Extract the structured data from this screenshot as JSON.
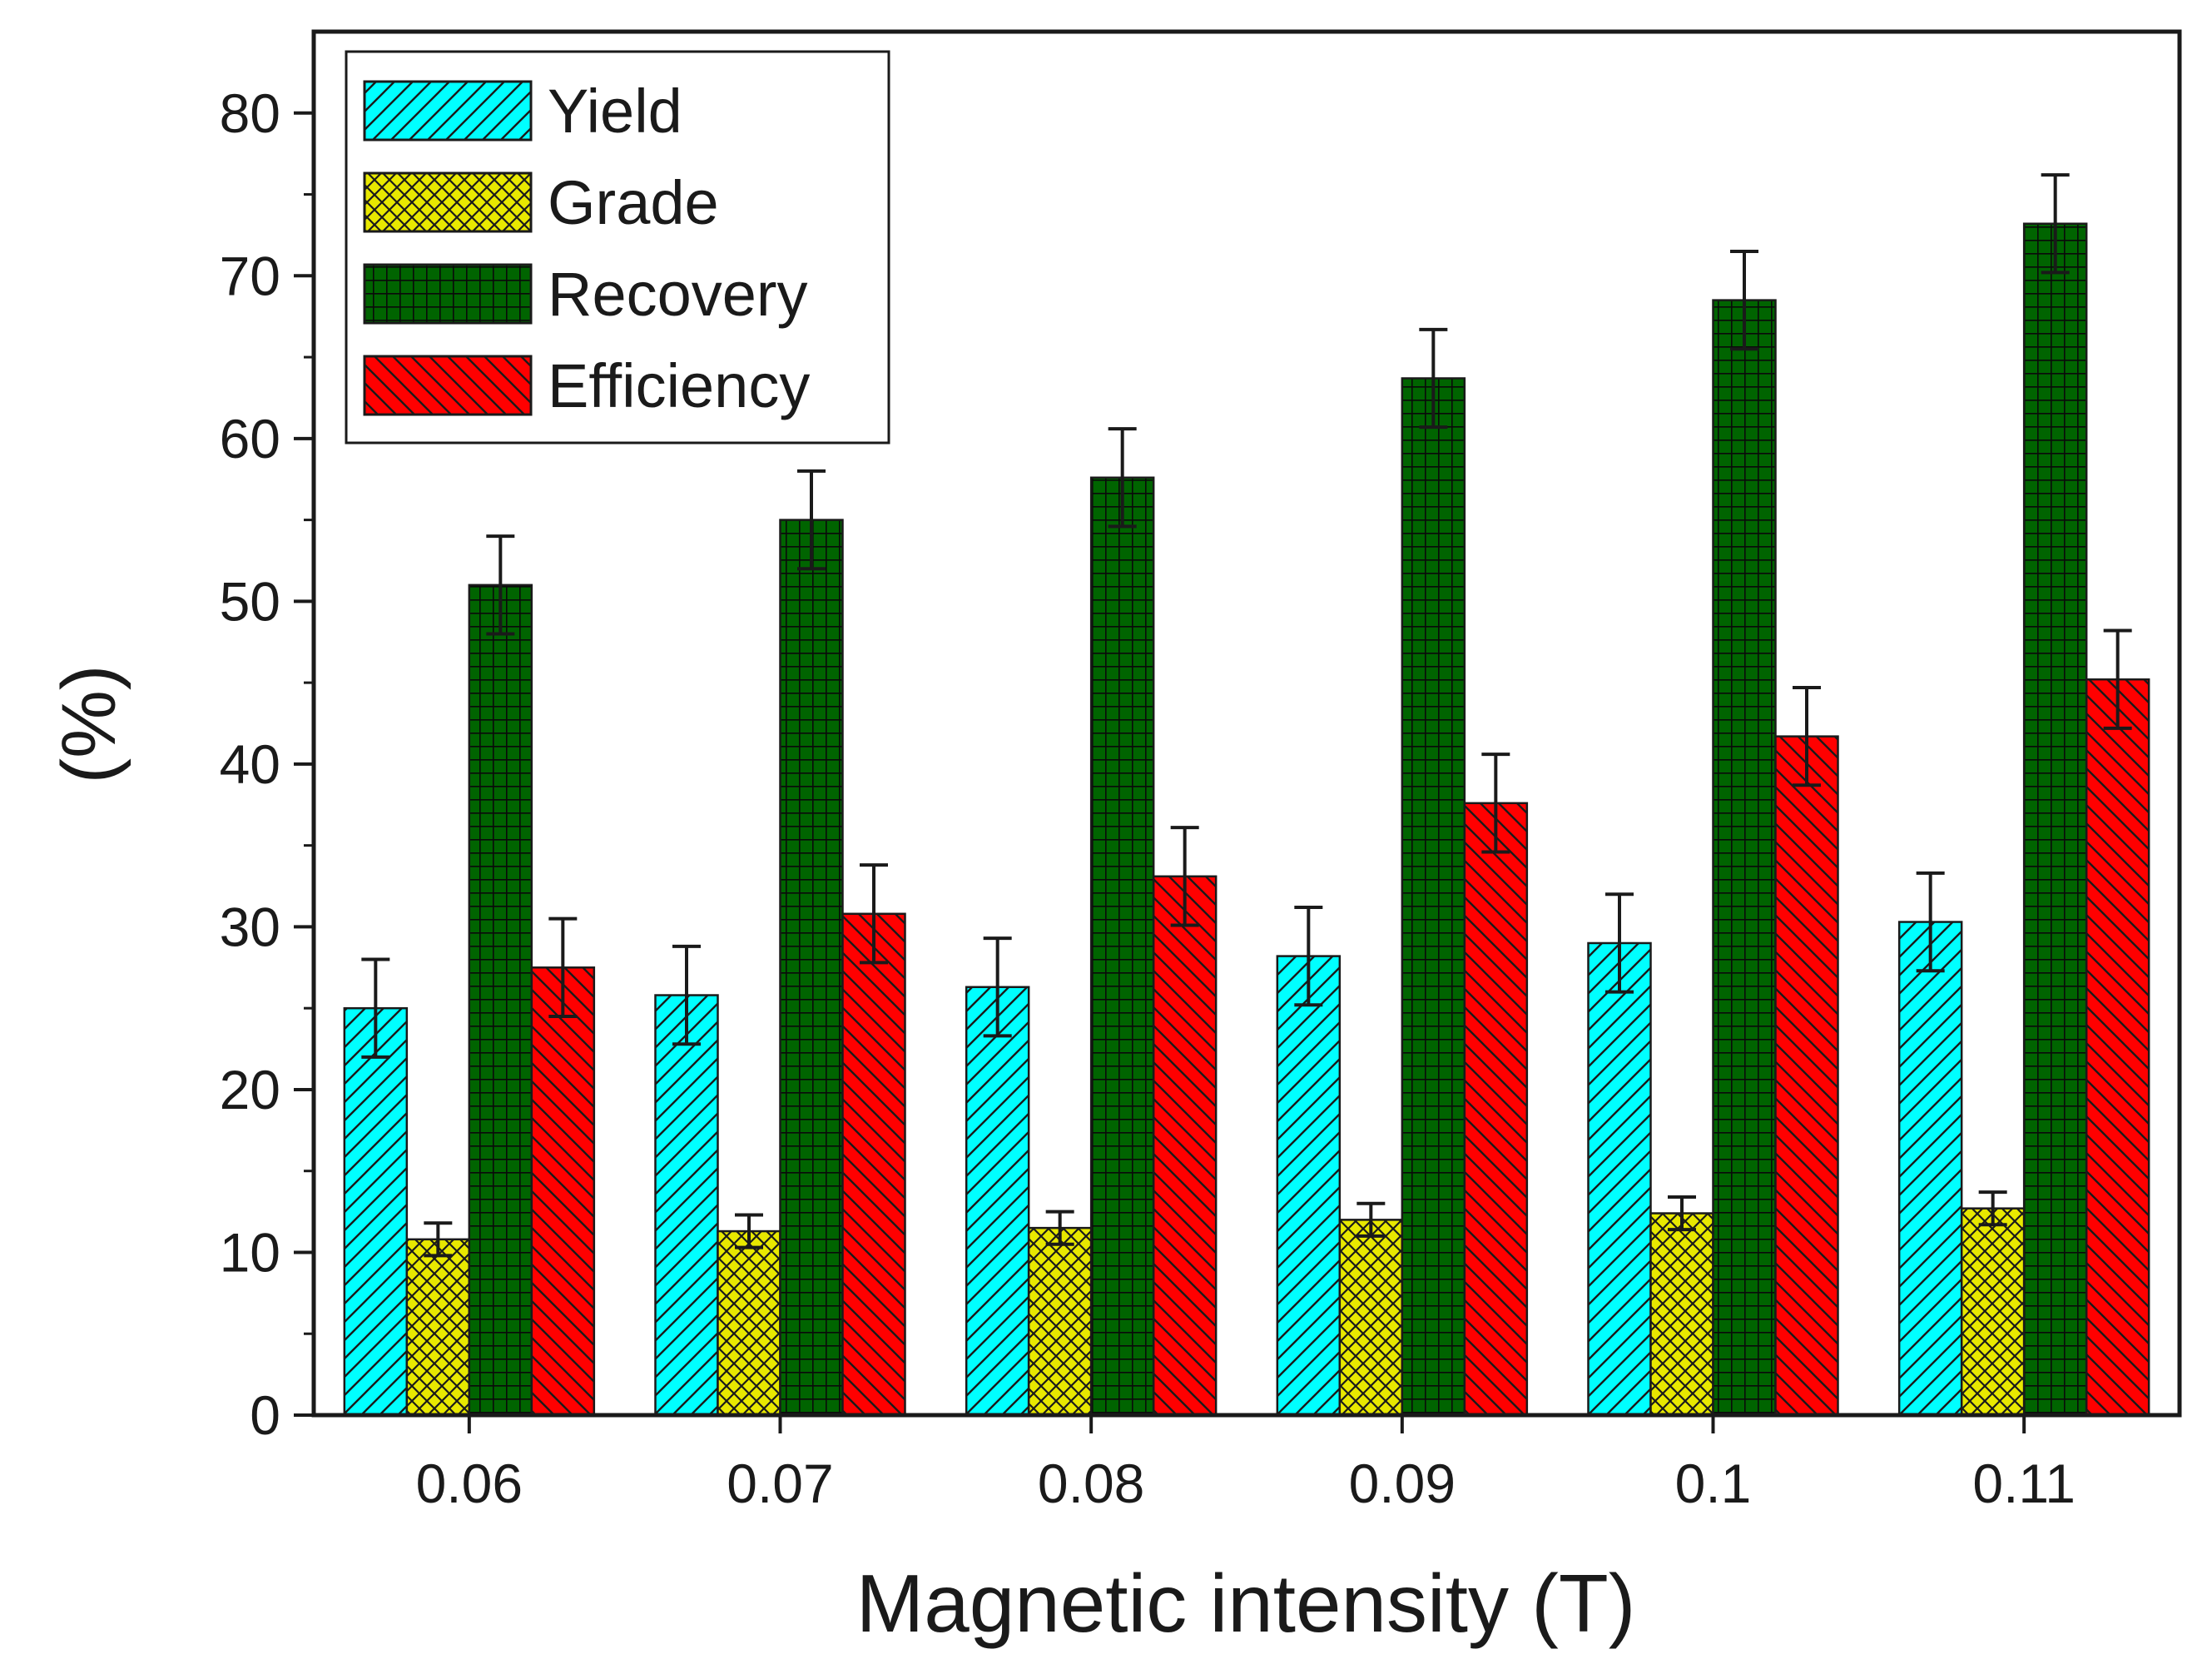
{
  "chart_data": {
    "type": "bar",
    "title": "",
    "xlabel": "Magnetic intensity (T)",
    "ylabel": "(%)",
    "categories": [
      "0.06",
      "0.07",
      "0.08",
      "0.09",
      "0.1",
      "0.11"
    ],
    "ylim": [
      0,
      85
    ],
    "yticks": [
      0,
      10,
      20,
      30,
      40,
      50,
      60,
      70,
      80
    ],
    "grid": false,
    "legend_position": "top-left",
    "series": [
      {
        "name": "Yield",
        "color": "#00ffff",
        "pattern": "diagonal-hatch",
        "values": [
          25.0,
          25.8,
          26.3,
          28.2,
          29.0,
          30.3
        ],
        "errors": [
          3.0,
          3.0,
          3.0,
          3.0,
          3.0,
          3.0
        ]
      },
      {
        "name": "Grade",
        "color": "#e8e800",
        "pattern": "cross-hatch",
        "values": [
          10.8,
          11.3,
          11.5,
          12.0,
          12.4,
          12.7
        ],
        "errors": [
          1.0,
          1.0,
          1.0,
          1.0,
          1.0,
          1.0
        ]
      },
      {
        "name": "Recovery",
        "color": "#006400",
        "pattern": "grid",
        "values": [
          51.0,
          55.0,
          57.6,
          63.7,
          68.5,
          73.2
        ],
        "errors": [
          3.0,
          3.0,
          3.0,
          3.0,
          3.0,
          3.0
        ]
      },
      {
        "name": "Efficiency",
        "color": "#ff0000",
        "pattern": "back-diagonal-hatch",
        "values": [
          27.5,
          30.8,
          33.1,
          37.6,
          41.7,
          45.2
        ],
        "errors": [
          3.0,
          3.0,
          3.0,
          3.0,
          3.0,
          3.0
        ]
      }
    ]
  }
}
